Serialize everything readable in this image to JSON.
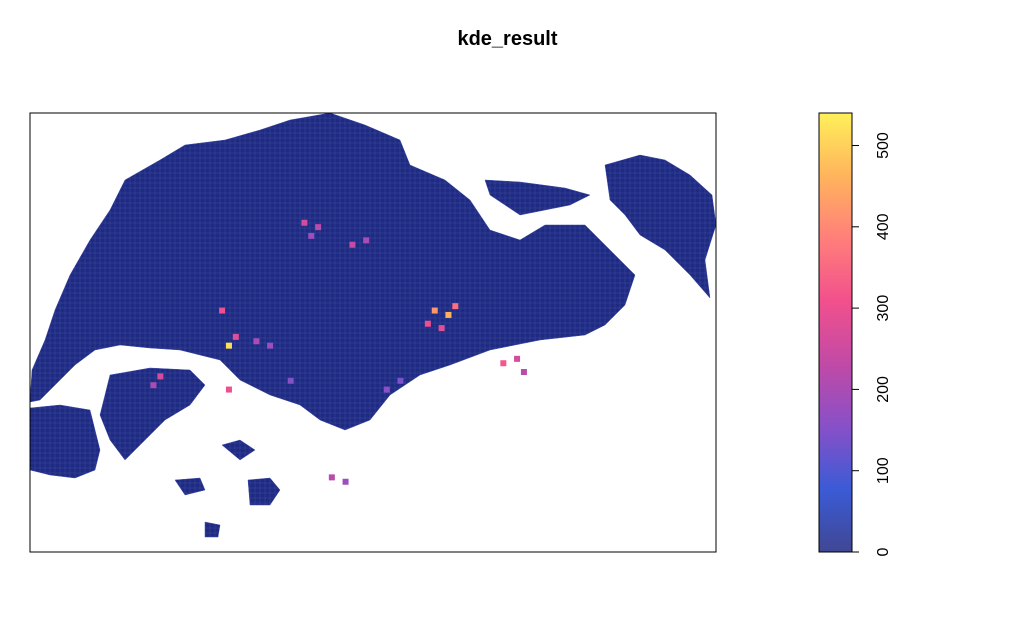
{
  "chart_data": {
    "type": "heatmap",
    "title": "kde_result",
    "colorbar": {
      "ticks": [
        0,
        100,
        200,
        300,
        400,
        500
      ],
      "range": [
        0,
        540
      ],
      "colors": [
        "#404794",
        "#3b5bd6",
        "#8850c8",
        "#c14aa6",
        "#f2508d",
        "#ff7f7a",
        "#ffb45c",
        "#fff05a"
      ],
      "placement": "right"
    },
    "grid_cells": [
      {
        "lon": 0.4,
        "lat": 0.75,
        "value": 260
      },
      {
        "lon": 0.42,
        "lat": 0.74,
        "value": 220
      },
      {
        "lon": 0.41,
        "lat": 0.72,
        "value": 180
      },
      {
        "lon": 0.47,
        "lat": 0.7,
        "value": 240
      },
      {
        "lon": 0.49,
        "lat": 0.71,
        "value": 200
      },
      {
        "lon": 0.28,
        "lat": 0.55,
        "value": 300
      },
      {
        "lon": 0.29,
        "lat": 0.47,
        "value": 520
      },
      {
        "lon": 0.3,
        "lat": 0.49,
        "value": 280
      },
      {
        "lon": 0.33,
        "lat": 0.48,
        "value": 200
      },
      {
        "lon": 0.35,
        "lat": 0.47,
        "value": 180
      },
      {
        "lon": 0.58,
        "lat": 0.52,
        "value": 300
      },
      {
        "lon": 0.59,
        "lat": 0.55,
        "value": 420
      },
      {
        "lon": 0.61,
        "lat": 0.54,
        "value": 460
      },
      {
        "lon": 0.62,
        "lat": 0.56,
        "value": 360
      },
      {
        "lon": 0.6,
        "lat": 0.51,
        "value": 280
      },
      {
        "lon": 0.69,
        "lat": 0.43,
        "value": 320
      },
      {
        "lon": 0.71,
        "lat": 0.44,
        "value": 260
      },
      {
        "lon": 0.72,
        "lat": 0.41,
        "value": 220
      },
      {
        "lon": 0.19,
        "lat": 0.4,
        "value": 260
      },
      {
        "lon": 0.18,
        "lat": 0.38,
        "value": 200
      },
      {
        "lon": 0.29,
        "lat": 0.37,
        "value": 300
      },
      {
        "lon": 0.52,
        "lat": 0.37,
        "value": 160
      },
      {
        "lon": 0.54,
        "lat": 0.39,
        "value": 140
      },
      {
        "lon": 0.44,
        "lat": 0.17,
        "value": 220
      },
      {
        "lon": 0.46,
        "lat": 0.16,
        "value": 180
      },
      {
        "lon": 0.38,
        "lat": 0.39,
        "value": 150
      }
    ]
  }
}
